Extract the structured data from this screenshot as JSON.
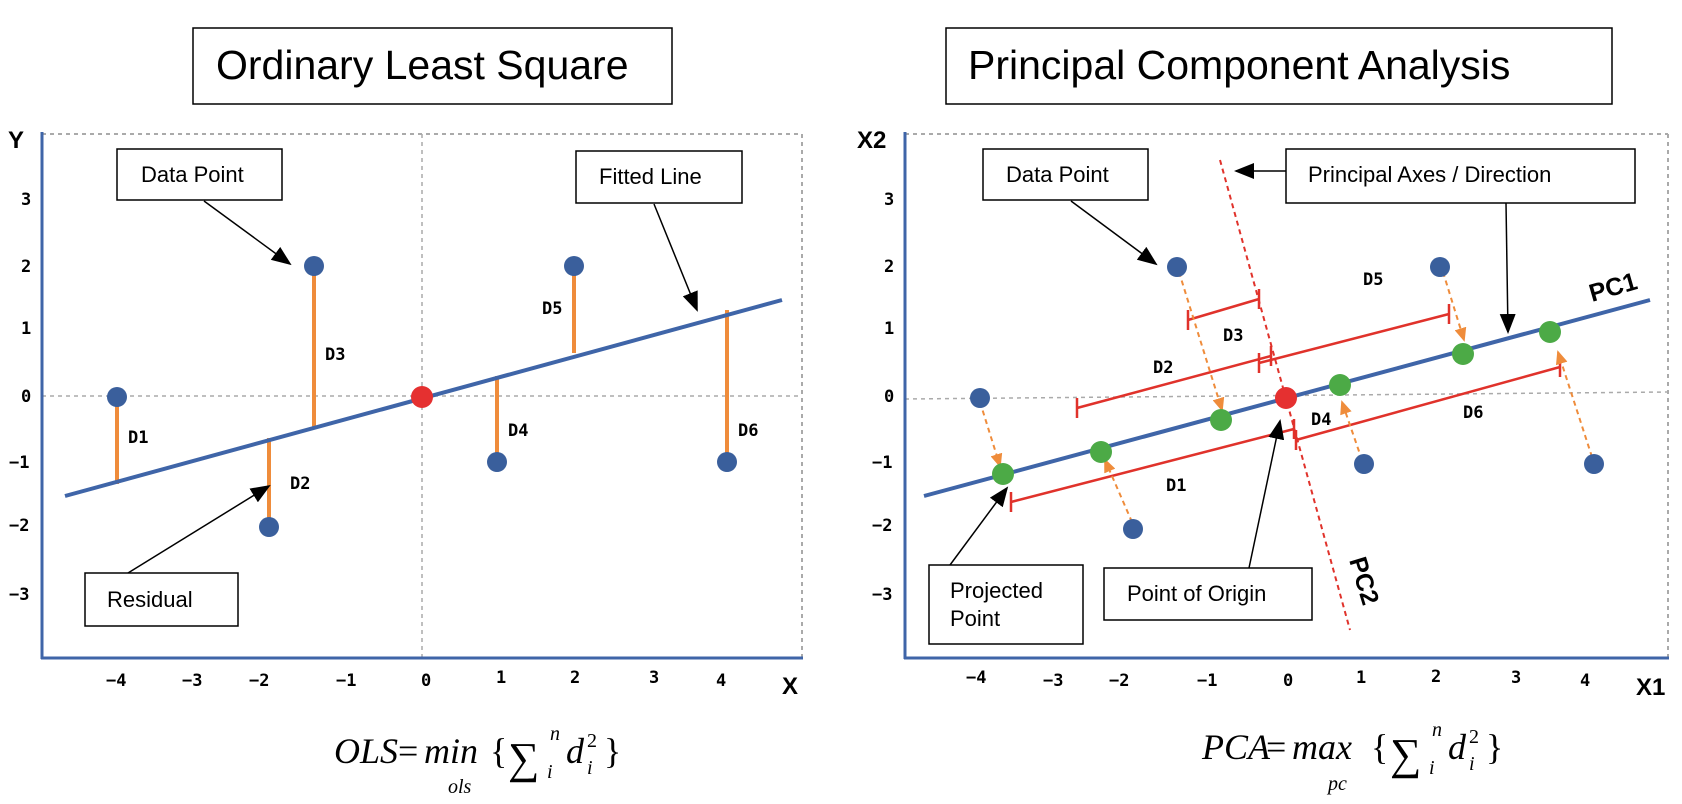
{
  "left_panel": {
    "title": "Ordinary Least Square",
    "y_axis_label": "Y",
    "x_axis_label": "X",
    "y_ticks": [
      "3",
      "2",
      "1",
      "0",
      "−1",
      "−2",
      "−3"
    ],
    "x_ticks": [
      "−4",
      "−3",
      "−2",
      "−1",
      "0",
      "1",
      "2",
      "3",
      "4"
    ],
    "callouts": {
      "data_point": "Data Point",
      "fitted_line": "Fitted Line",
      "residual": "Residual"
    },
    "residual_labels": [
      "D1",
      "D2",
      "D3",
      "D4",
      "D5",
      "D6"
    ],
    "formula": {
      "lhs": "OLS",
      "eq": "=",
      "op": "min",
      "op_sub": "ols",
      "lbrace": "{",
      "sigma": "∑",
      "sup": "n",
      "sub": "i",
      "term": "d",
      "term_sup": "2",
      "term_sub": "i",
      "rbrace": "}"
    }
  },
  "right_panel": {
    "title": "Principal Component Analysis",
    "y_axis_label": "X2",
    "x_axis_label": "X1",
    "y_ticks": [
      "3",
      "2",
      "1",
      "0",
      "−1",
      "−2",
      "−3"
    ],
    "x_ticks": [
      "−4",
      "−3",
      "−2",
      "−1",
      "0",
      "1",
      "2",
      "3",
      "4"
    ],
    "callouts": {
      "data_point": "Data Point",
      "principal_axes": "Principal Axes / Direction",
      "projected_point_line1": "Projected",
      "projected_point_line2": "Point",
      "point_of_origin": "Point of Origin"
    },
    "pc1_label": "PC1",
    "pc2_label": "PC2",
    "distance_labels": [
      "D1",
      "D2",
      "D3",
      "D4",
      "D5",
      "D6"
    ],
    "formula": {
      "lhs": "PCA",
      "eq": "=",
      "op": "max",
      "op_sub": "pc",
      "lbrace": "{",
      "sigma": "∑",
      "sup": "n",
      "sub": "i",
      "term": "d",
      "term_sup": "2",
      "term_sub": "i",
      "rbrace": "}"
    }
  },
  "colors": {
    "data_point": "#3a5f9c",
    "origin": "#e53030",
    "projected_point": "#4caa46",
    "fitted_line": "#3f65a8",
    "residual": "#ef8c3b",
    "pc2_and_distances": "#e0322b",
    "axis": "#3f65a8",
    "grid": "#aaaaaa"
  }
}
